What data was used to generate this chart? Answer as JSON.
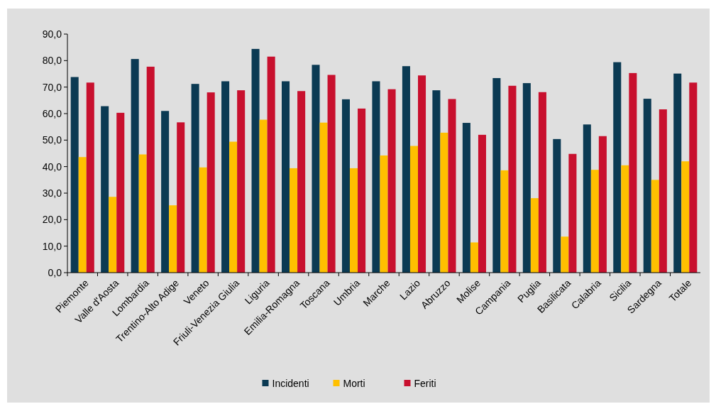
{
  "chart_data": {
    "type": "bar",
    "categories": [
      "Piemonte",
      "Valle d'Aosta",
      "Lombardia",
      "Trentino-Alto Adige",
      "Veneto",
      "Friuli-Venezia Giulia",
      "Liguria",
      "Emilia-Romagna",
      "Toscana",
      "Umbria",
      "Marche",
      "Lazio",
      "Abruzzo",
      "Molise",
      "Campania",
      "Puglia",
      "Basilicata",
      "Calabria",
      "Sicilia",
      "Sardegna",
      "Totale"
    ],
    "series": [
      {
        "name": "Incidenti",
        "color": "#0b3a53",
        "values": [
          73.8,
          62.8,
          80.6,
          61.0,
          71.2,
          72.2,
          84.4,
          72.2,
          78.4,
          65.4,
          72.2,
          77.9,
          68.8,
          56.5,
          73.4,
          71.5,
          50.4,
          55.9,
          79.4,
          65.6,
          75.1
        ]
      },
      {
        "name": "Morti",
        "color": "#ffc000",
        "values": [
          43.6,
          28.6,
          44.6,
          25.4,
          39.7,
          49.4,
          57.7,
          39.4,
          56.6,
          39.4,
          44.2,
          47.8,
          52.8,
          11.4,
          38.6,
          28.1,
          13.6,
          38.8,
          40.5,
          35.0,
          42.0
        ]
      },
      {
        "name": "Feriti",
        "color": "#c8102e",
        "values": [
          71.7,
          60.3,
          77.7,
          56.7,
          68.0,
          68.8,
          81.5,
          68.5,
          74.6,
          61.9,
          69.2,
          74.4,
          65.5,
          52.0,
          70.5,
          68.1,
          44.8,
          51.5,
          75.3,
          61.6,
          71.7
        ]
      }
    ],
    "ylim": [
      0,
      90
    ],
    "yticks": [
      {
        "value": 0,
        "label": "0,0"
      },
      {
        "value": 10,
        "label": "10,0"
      },
      {
        "value": 20,
        "label": "20,0"
      },
      {
        "value": 30,
        "label": "30,0"
      },
      {
        "value": 40,
        "label": "40,0"
      },
      {
        "value": 50,
        "label": "50,0"
      },
      {
        "value": 60,
        "label": "60,0"
      },
      {
        "value": 70,
        "label": "70,0"
      },
      {
        "value": 80,
        "label": "80,0"
      },
      {
        "value": 90,
        "label": "90,0"
      }
    ],
    "grid": false,
    "legend": "bottom"
  }
}
